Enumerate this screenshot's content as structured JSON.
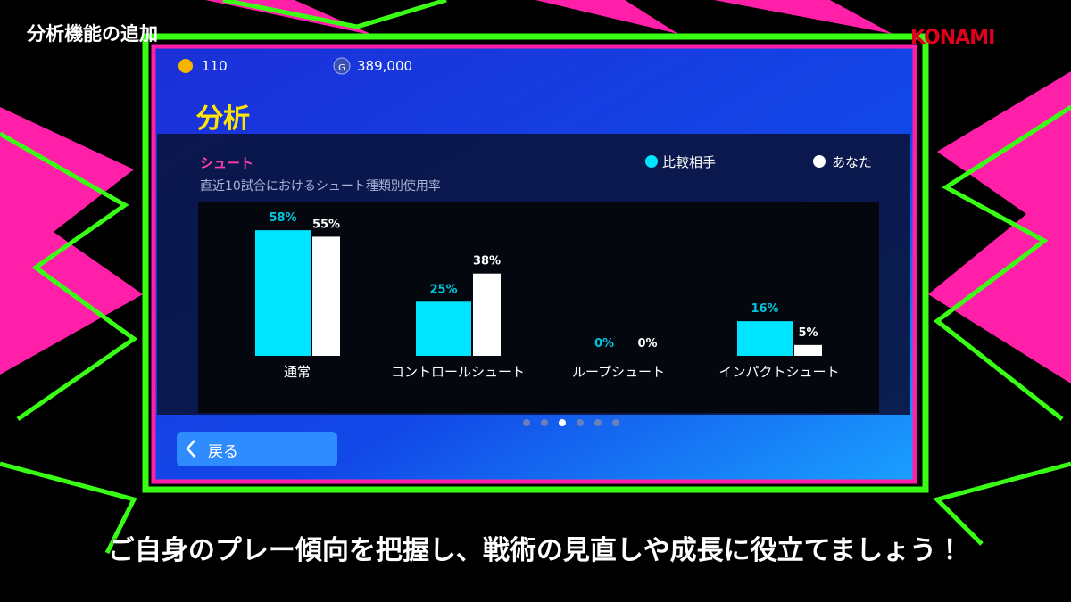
{
  "header": {
    "title": "分析機能の追加",
    "brand": "KONAMI"
  },
  "currency": {
    "coins": "110",
    "gold_icon": "G",
    "gold": "389,000"
  },
  "screen_title": "分析",
  "back_button": "戻る",
  "caption": "ご自身のプレー傾向を把握し、戦術の見直しや成長に役立てましょう！",
  "chart_data": {
    "type": "bar",
    "title": "シュート",
    "subtitle": "直近10試合におけるシュート種類別使用率",
    "categories": [
      "通常",
      "コントロールシュート",
      "ループシュート",
      "インパクトシュート"
    ],
    "series": [
      {
        "name": "比較相手",
        "color": "#00e5ff",
        "values": [
          58,
          25,
          0,
          16
        ],
        "value_labels": [
          "58%",
          "25%",
          "0%",
          "16%"
        ]
      },
      {
        "name": "あなた",
        "color": "#ffffff",
        "values": [
          55,
          38,
          0,
          5
        ],
        "value_labels": [
          "55%",
          "38%",
          "0%",
          "5%"
        ]
      }
    ],
    "ylim": [
      0,
      70
    ]
  }
}
